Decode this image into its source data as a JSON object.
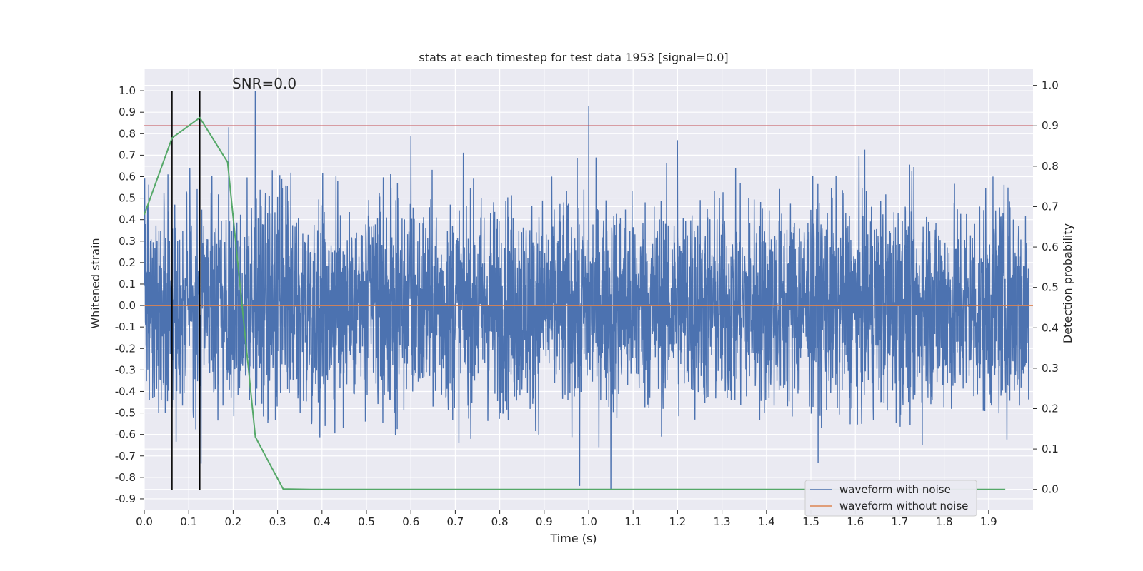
{
  "chart_data": {
    "type": "line",
    "title": "stats at each timestep for test data 1953 [signal=0.0]",
    "xlabel": "Time (s)",
    "ylabel_left": "Whitened strain",
    "ylabel_right": "Detection probability",
    "annotation": "SNR=0.0",
    "xlim": [
      0.0,
      2.0
    ],
    "ylim_left": [
      -0.95,
      1.1
    ],
    "ylim_right": [
      -0.05,
      1.04
    ],
    "x_ticks": [
      "0.0",
      "0.1",
      "0.2",
      "0.3",
      "0.4",
      "0.5",
      "0.6",
      "0.7",
      "0.8",
      "0.9",
      "1.0",
      "1.1",
      "1.2",
      "1.3",
      "1.4",
      "1.5",
      "1.6",
      "1.7",
      "1.8",
      "1.9"
    ],
    "y_left_ticks": [
      "1.0",
      "0.9",
      "0.8",
      "0.7",
      "0.6",
      "0.5",
      "0.4",
      "0.3",
      "0.2",
      "0.1",
      "0.0",
      "-0.1",
      "-0.2",
      "-0.3",
      "-0.4",
      "-0.5",
      "-0.6",
      "-0.7",
      "-0.8",
      "-0.9"
    ],
    "y_right_ticks": [
      "1.0",
      "0.9",
      "0.8",
      "0.7",
      "0.6",
      "0.5",
      "0.4",
      "0.3",
      "0.2",
      "0.1",
      "0.0"
    ],
    "grid": true,
    "legend_position": "bottom-right",
    "series": [
      {
        "name": "waveform with noise",
        "axis": "left",
        "color": "#4c72b0",
        "style": "dense noise, approx uniform amplitude within [-0.85, 0.93]",
        "peaks": [
          [
            0.19,
            0.83
          ],
          [
            0.25,
            1.0
          ],
          [
            0.6,
            0.79
          ],
          [
            1.0,
            0.93
          ],
          [
            1.2,
            0.77
          ],
          [
            1.05,
            -0.86
          ],
          [
            0.98,
            -0.84
          ]
        ]
      },
      {
        "name": "waveform without noise",
        "axis": "left",
        "color": "#dd8452",
        "x": [
          0.0,
          2.0
        ],
        "y": [
          0.0,
          0.0
        ]
      },
      {
        "name": "",
        "axis": "right",
        "color": "#55a868",
        "x": [
          0.0,
          0.0625,
          0.125,
          0.1875,
          0.25,
          0.3125,
          0.375,
          0.4375,
          0.5,
          1.0,
          1.5,
          1.9375
        ],
        "y": [
          0.68,
          0.87,
          0.92,
          0.81,
          0.13,
          0.001,
          0.0,
          0.0,
          0.0,
          0.0,
          0.0,
          0.0
        ]
      }
    ],
    "hlines": [
      {
        "axis": "right",
        "y": 0.9,
        "color": "#c44e52"
      }
    ],
    "vlines": [
      {
        "x": 0.0625,
        "y_range_left": [
          -0.86,
          1.0
        ],
        "color": "#000000"
      },
      {
        "x": 0.125,
        "y_range_left": [
          -0.86,
          1.0
        ],
        "color": "#000000"
      }
    ]
  }
}
